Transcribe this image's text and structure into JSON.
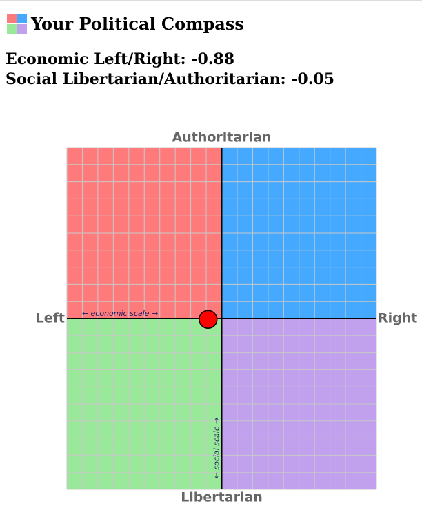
{
  "header": {
    "title": "Your Political Compass",
    "results": [
      {
        "label": "Economic Left/Right:"
      },
      {
        "label": "Social Libertarian/Authoritarian:"
      }
    ]
  },
  "chart_data": {
    "type": "scatter",
    "x": [
      -0.88
    ],
    "values": [
      -0.05
    ],
    "color": "#ff0000",
    "xlim": [
      -10,
      10
    ],
    "ylim": [
      -10,
      10
    ],
    "top_label": "Authoritarian",
    "bottom_label": "Libertarian",
    "left_label": "Left",
    "right_label": "Right",
    "x_scale_label": "← economic scale →",
    "y_scale_label": "← social scale →",
    "quadrant_colors": {
      "top_left": "#ff7b7b",
      "top_right": "#45aaff",
      "bottom_left": "#9ae89a",
      "bottom_right": "#c1a0ee"
    },
    "grid": true
  }
}
